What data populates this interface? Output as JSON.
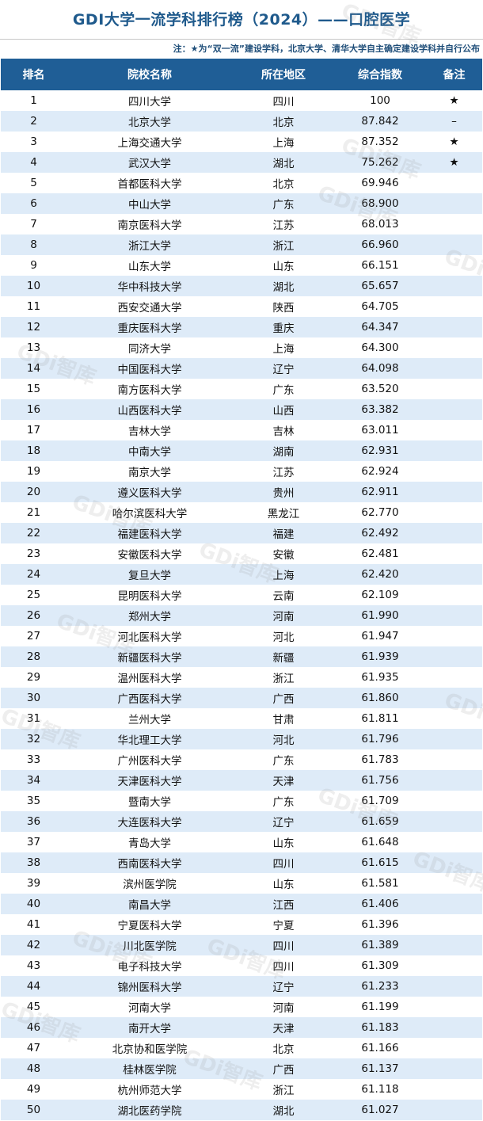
{
  "title": "GDI大学一流学科排行榜（2024）——口腔医学",
  "note": "注：★为“双一流”建设学科，北京大学、清华大学自主确定建设学科并自行公布",
  "watermark": "GDi智库",
  "headers": [
    "排名",
    "院校名称",
    "所在地区",
    "综合指数",
    "备注"
  ],
  "colors": {
    "header_bg": "#1f5e96",
    "title": "#1f5a8c",
    "stripe": "#deebf8"
  },
  "rows": [
    [
      "1",
      "四川大学",
      "四川",
      "100",
      "★"
    ],
    [
      "2",
      "北京大学",
      "北京",
      "87.842",
      "–"
    ],
    [
      "3",
      "上海交通大学",
      "上海",
      "87.352",
      "★"
    ],
    [
      "4",
      "武汉大学",
      "湖北",
      "75.262",
      "★"
    ],
    [
      "5",
      "首都医科大学",
      "北京",
      "69.946",
      ""
    ],
    [
      "6",
      "中山大学",
      "广东",
      "68.900",
      ""
    ],
    [
      "7",
      "南京医科大学",
      "江苏",
      "68.013",
      ""
    ],
    [
      "8",
      "浙江大学",
      "浙江",
      "66.960",
      ""
    ],
    [
      "9",
      "山东大学",
      "山东",
      "66.151",
      ""
    ],
    [
      "10",
      "华中科技大学",
      "湖北",
      "65.657",
      ""
    ],
    [
      "11",
      "西安交通大学",
      "陕西",
      "64.705",
      ""
    ],
    [
      "12",
      "重庆医科大学",
      "重庆",
      "64.347",
      ""
    ],
    [
      "13",
      "同济大学",
      "上海",
      "64.300",
      ""
    ],
    [
      "14",
      "中国医科大学",
      "辽宁",
      "64.098",
      ""
    ],
    [
      "15",
      "南方医科大学",
      "广东",
      "63.520",
      ""
    ],
    [
      "16",
      "山西医科大学",
      "山西",
      "63.382",
      ""
    ],
    [
      "17",
      "吉林大学",
      "吉林",
      "63.011",
      ""
    ],
    [
      "18",
      "中南大学",
      "湖南",
      "62.931",
      ""
    ],
    [
      "19",
      "南京大学",
      "江苏",
      "62.924",
      ""
    ],
    [
      "20",
      "遵义医科大学",
      "贵州",
      "62.911",
      ""
    ],
    [
      "21",
      "哈尔滨医科大学",
      "黑龙江",
      "62.770",
      ""
    ],
    [
      "22",
      "福建医科大学",
      "福建",
      "62.492",
      ""
    ],
    [
      "23",
      "安徽医科大学",
      "安徽",
      "62.481",
      ""
    ],
    [
      "24",
      "复旦大学",
      "上海",
      "62.420",
      ""
    ],
    [
      "25",
      "昆明医科大学",
      "云南",
      "62.109",
      ""
    ],
    [
      "26",
      "郑州大学",
      "河南",
      "61.990",
      ""
    ],
    [
      "27",
      "河北医科大学",
      "河北",
      "61.947",
      ""
    ],
    [
      "28",
      "新疆医科大学",
      "新疆",
      "61.939",
      ""
    ],
    [
      "29",
      "温州医科大学",
      "浙江",
      "61.935",
      ""
    ],
    [
      "30",
      "广西医科大学",
      "广西",
      "61.860",
      ""
    ],
    [
      "31",
      "兰州大学",
      "甘肃",
      "61.811",
      ""
    ],
    [
      "32",
      "华北理工大学",
      "河北",
      "61.796",
      ""
    ],
    [
      "33",
      "广州医科大学",
      "广东",
      "61.783",
      ""
    ],
    [
      "34",
      "天津医科大学",
      "天津",
      "61.756",
      ""
    ],
    [
      "35",
      "暨南大学",
      "广东",
      "61.709",
      ""
    ],
    [
      "36",
      "大连医科大学",
      "辽宁",
      "61.659",
      ""
    ],
    [
      "37",
      "青岛大学",
      "山东",
      "61.648",
      ""
    ],
    [
      "38",
      "西南医科大学",
      "四川",
      "61.615",
      ""
    ],
    [
      "39",
      "滨州医学院",
      "山东",
      "61.581",
      ""
    ],
    [
      "40",
      "南昌大学",
      "江西",
      "61.406",
      ""
    ],
    [
      "41",
      "宁夏医科大学",
      "宁夏",
      "61.396",
      ""
    ],
    [
      "42",
      "川北医学院",
      "四川",
      "61.389",
      ""
    ],
    [
      "43",
      "电子科技大学",
      "四川",
      "61.309",
      ""
    ],
    [
      "44",
      "锦州医科大学",
      "辽宁",
      "61.233",
      ""
    ],
    [
      "45",
      "河南大学",
      "河南",
      "61.199",
      ""
    ],
    [
      "46",
      "南开大学",
      "天津",
      "61.183",
      ""
    ],
    [
      "47",
      "北京协和医学院",
      "北京",
      "61.166",
      ""
    ],
    [
      "48",
      "桂林医学院",
      "广西",
      "61.137",
      ""
    ],
    [
      "49",
      "杭州师范大学",
      "浙江",
      "61.118",
      ""
    ],
    [
      "50",
      "湖北医药学院",
      "湖北",
      "61.027",
      ""
    ]
  ]
}
